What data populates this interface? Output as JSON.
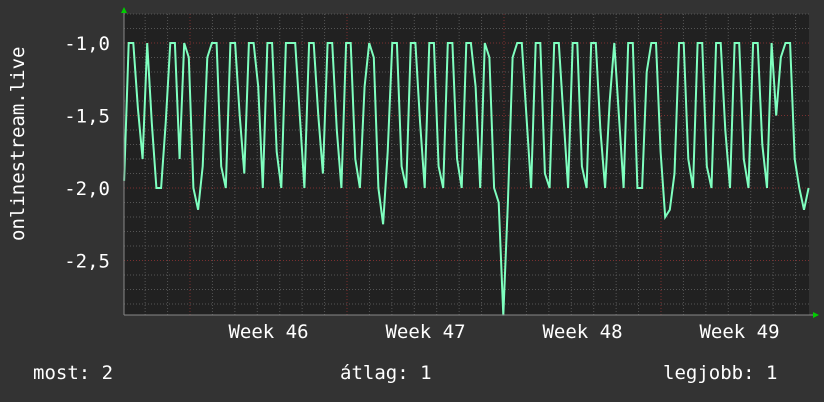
{
  "chart_data": {
    "type": "line",
    "title": "",
    "ylabel": "onlinestream.live",
    "xlabel": "",
    "ylim": [
      -2.876,
      -0.8
    ],
    "y_ticks": [
      -1.0,
      -1.5,
      -2.0,
      -2.5
    ],
    "y_tick_labels": [
      "-1,0",
      "-1,5",
      "-2,0",
      "-2,5"
    ],
    "x_range_weeks": [
      45.58,
      49.94
    ],
    "x_tick_labels": [
      "Week 46",
      "Week 47",
      "Week 48",
      "Week 49"
    ],
    "grid": true,
    "colors": {
      "line": "#7fffbf",
      "background": "#333333",
      "plot": "#212121",
      "major_grid": "#7a3030",
      "minor_grid": "#555555",
      "arrow": "#00cc00"
    },
    "values": [
      -1.95,
      -1,
      -1,
      -1.45,
      -1.8,
      -1,
      -1.55,
      -2,
      -2,
      -1.55,
      -1,
      -1,
      -1.8,
      -1,
      -1.1,
      -2,
      -2.15,
      -1.85,
      -1.1,
      -1,
      -1,
      -1.85,
      -2,
      -1,
      -1,
      -1.5,
      -1.9,
      -1,
      -1,
      -1.3,
      -2,
      -1,
      -1,
      -1.75,
      -2,
      -1,
      -1,
      -1,
      -1.5,
      -2,
      -1,
      -1,
      -1.5,
      -1.9,
      -1,
      -1,
      -1.6,
      -2,
      -1,
      -1,
      -1.8,
      -2,
      -1.3,
      -1,
      -1.1,
      -2,
      -2.25,
      -1.75,
      -1,
      -1,
      -1.85,
      -2,
      -1,
      -1,
      -1.55,
      -2,
      -1,
      -1,
      -1.85,
      -2,
      -1,
      -1,
      -1.8,
      -2,
      -1,
      -1,
      -1.3,
      -2,
      -1,
      -1.1,
      -2,
      -2.1,
      -2.88,
      -2.1,
      -1.1,
      -1,
      -1,
      -1.5,
      -2,
      -1,
      -1,
      -1.9,
      -2,
      -1,
      -1,
      -1.5,
      -2,
      -1,
      -1,
      -1.85,
      -2,
      -1,
      -1,
      -1.6,
      -2,
      -1.4,
      -1,
      -1.5,
      -2,
      -1,
      -1,
      -2,
      -2,
      -1.2,
      -1,
      -1,
      -1.75,
      -2.2,
      -2.15,
      -1.9,
      -1,
      -1,
      -1.8,
      -2,
      -1,
      -1,
      -1.85,
      -2,
      -1,
      -1,
      -1.6,
      -2,
      -1,
      -1,
      -1.8,
      -2,
      -1,
      -1,
      -1.7,
      -2,
      -1,
      -1.5,
      -1.1,
      -1,
      -1,
      -1.8,
      -2,
      -2.15,
      -2
    ]
  },
  "legend": {
    "current": "most: 2",
    "average": "átlag: 1",
    "best": "legjobb: 1"
  }
}
